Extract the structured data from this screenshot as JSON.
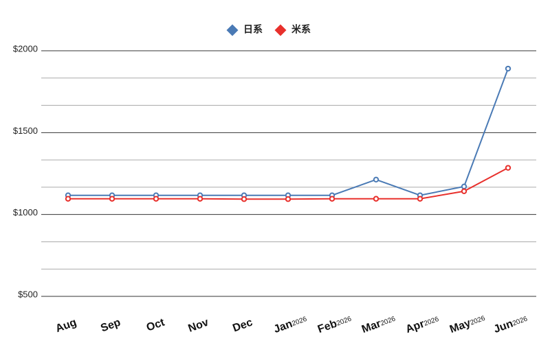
{
  "chart_data": {
    "type": "line",
    "categories": [
      "Aug",
      "Sep",
      "Oct",
      "Nov",
      "Dec",
      "Jan",
      "Feb",
      "Mar",
      "Apr",
      "May",
      "Jun"
    ],
    "category_years": [
      null,
      null,
      null,
      null,
      null,
      "2026",
      "2026",
      "2026",
      "2026",
      "2026",
      "2026"
    ],
    "series": [
      {
        "name": "日系",
        "color": "#4a7ab5",
        "values": [
          1117,
          1117,
          1117,
          1117,
          1117,
          1117,
          1117,
          1213,
          1117,
          1171,
          1891
        ]
      },
      {
        "name": "米系",
        "color": "#e8302c",
        "values": [
          1096,
          1096,
          1096,
          1096,
          1094,
          1094,
          1096,
          1096,
          1096,
          1142,
          1285
        ]
      }
    ],
    "ylim": [
      500,
      2000
    ],
    "yticks": [
      {
        "value": 500,
        "label": "$500"
      },
      {
        "value": 1000,
        "label": "$1000"
      },
      {
        "value": 1500,
        "label": "$1500"
      },
      {
        "value": 2000,
        "label": "$2000"
      }
    ],
    "grid": true,
    "legend": "top"
  }
}
